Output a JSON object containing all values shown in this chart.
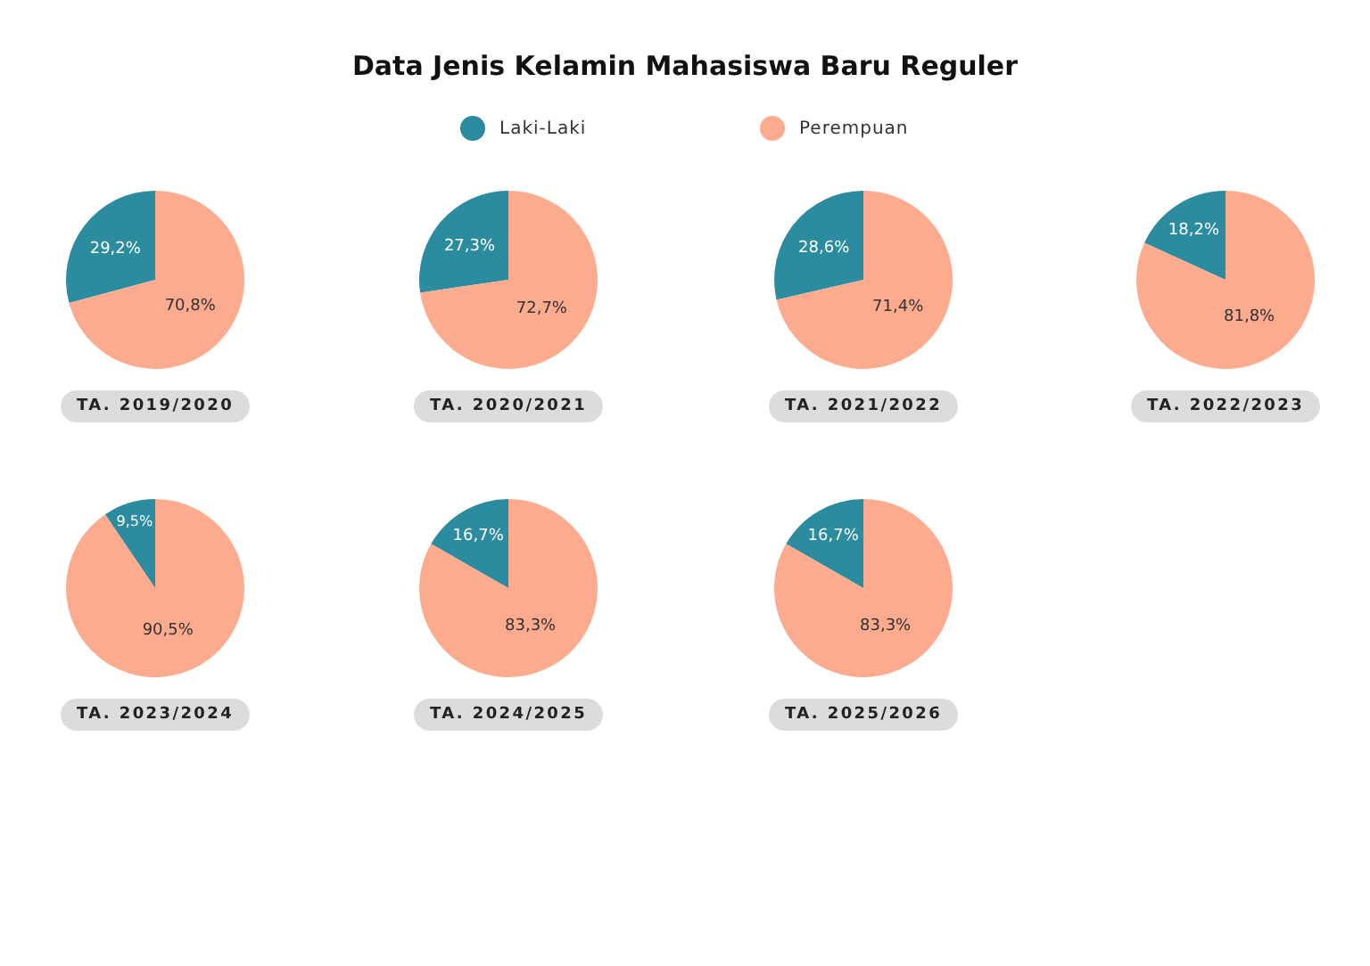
{
  "chart_data": [
    {
      "type": "pie",
      "title": "Data Jenis Kelamin Mahasiswa Baru Reguler",
      "legend": "top",
      "xlabel": "TA. 2019/2020",
      "categories": [
        "Laki-Laki",
        "Perempuan"
      ],
      "values": [
        29.2,
        70.8
      ],
      "value_labels": [
        "29,2%",
        "70,8%"
      ],
      "colors": [
        "#2b8b9f",
        "#fcab8f"
      ]
    },
    {
      "type": "pie",
      "xlabel": "TA. 2020/2021",
      "values": [
        27.3,
        72.7
      ],
      "value_labels": [
        "27,3%",
        "72,7%"
      ],
      "colors": [
        "#2b8b9f",
        "#fcab8f"
      ]
    },
    {
      "type": "pie",
      "xlabel": "TA. 2021/2022",
      "values": [
        28.6,
        71.4
      ],
      "value_labels": [
        "28,6%",
        "71,4%"
      ],
      "colors": [
        "#2b8b9f",
        "#fcab8f"
      ]
    },
    {
      "type": "pie",
      "xlabel": "TA. 2022/2023",
      "values": [
        18.2,
        81.8
      ],
      "value_labels": [
        "18,2%",
        "81,8%"
      ],
      "colors": [
        "#2b8b9f",
        "#fcab8f"
      ]
    },
    {
      "type": "pie",
      "xlabel": "TA. 2023/2024",
      "values": [
        9.5,
        90.5
      ],
      "value_labels": [
        "9,5%",
        "90,5%"
      ],
      "colors": [
        "#2b8b9f",
        "#fcab8f"
      ]
    },
    {
      "type": "pie",
      "xlabel": "TA. 2024/2025",
      "values": [
        16.7,
        83.3
      ],
      "value_labels": [
        "16,7%",
        "83,3%"
      ],
      "colors": [
        "#2b8b9f",
        "#fcab8f"
      ]
    },
    {
      "type": "pie",
      "xlabel": "TA. 2025/2026",
      "values": [
        16.7,
        83.3
      ],
      "value_labels": [
        "16,7%",
        "83,3%"
      ],
      "colors": [
        "#2b8b9f",
        "#fcab8f"
      ]
    }
  ]
}
